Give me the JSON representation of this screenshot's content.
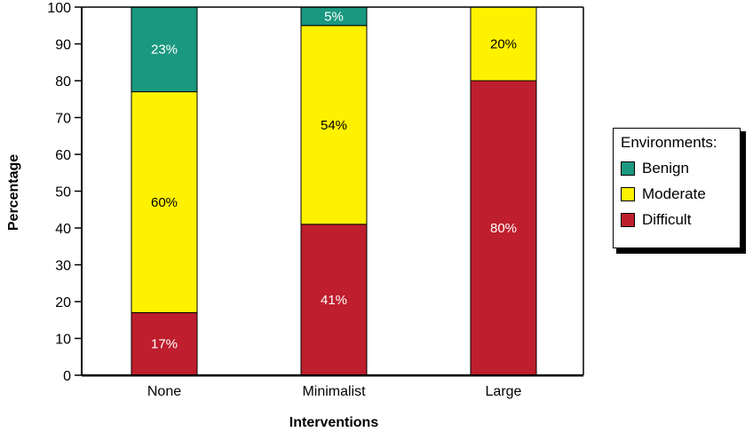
{
  "chart_data": {
    "type": "bar",
    "stacked": true,
    "categories": [
      "None",
      "Minimalist",
      "Large"
    ],
    "series": [
      {
        "name": "Difficult",
        "values": [
          17,
          41,
          80
        ],
        "labels": [
          "17%",
          "41%",
          "80%"
        ],
        "color": "#be1e2d"
      },
      {
        "name": "Moderate",
        "values": [
          60,
          54,
          20
        ],
        "labels": [
          "60%",
          "54%",
          "20%"
        ],
        "color": "#fff200"
      },
      {
        "name": "Benign",
        "values": [
          23,
          5,
          0
        ],
        "labels": [
          "23%",
          "5%",
          ""
        ],
        "color": "#1a9880"
      }
    ],
    "xlabel": "Interventions",
    "ylabel": "Percentage",
    "ylim": [
      0,
      100
    ],
    "yticks": [
      "0",
      "10",
      "20",
      "30",
      "40",
      "50",
      "60",
      "70",
      "80",
      "90",
      "100"
    ],
    "grid": false,
    "legend": {
      "title": "Environments:",
      "position": "right",
      "items": [
        "Benign",
        "Moderate",
        "Difficult"
      ]
    }
  }
}
